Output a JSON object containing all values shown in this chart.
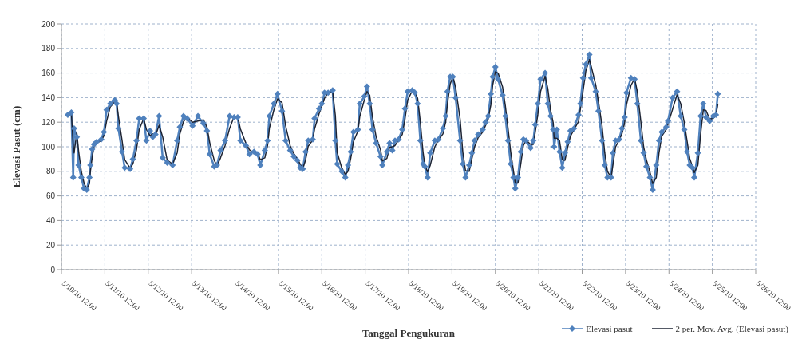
{
  "chart_data": {
    "type": "line",
    "xlabel": "Tanggal Pengukuran",
    "ylabel": "Elevasi Pasut (cm)",
    "grid": true,
    "legend": "bottom right",
    "line_style": "solid",
    "xlim": [
      "--05-10T12:00",
      "--05-26T12:00"
    ],
    "ylim": [
      0,
      200
    ],
    "yticks": [
      0,
      20,
      40,
      60,
      80,
      100,
      120,
      140,
      160,
      180,
      200
    ],
    "xticks": [
      {
        "value": "--05-10T12:00",
        "label": "5/10/10 12:00"
      },
      {
        "value": "--05-11T12:00",
        "label": "5/11/10 12:00"
      },
      {
        "value": "--05-12T12:00",
        "label": "5/12/10 12:00"
      },
      {
        "value": "--05-13T12:00",
        "label": "5/13/10 12:00"
      },
      {
        "value": "--05-14T12:00",
        "label": "5/14/10 12:00"
      },
      {
        "value": "--05-15T12:00",
        "label": "5/15/10 12:00"
      },
      {
        "value": "--05-16T12:00",
        "label": "5/16/10 12:00"
      },
      {
        "value": "--05-17T12:00",
        "label": "5/17/10 12:00"
      },
      {
        "value": "--05-18T12:00",
        "label": "5/18/10 12:00"
      },
      {
        "value": "--05-19T12:00",
        "label": "5/19/10 12:00"
      },
      {
        "value": "--05-20T12:00",
        "label": "5/20/10 12:00"
      },
      {
        "value": "--05-21T12:00",
        "label": "5/21/10 12:00"
      },
      {
        "value": "--05-22T12:00",
        "label": "5/22/10 12:00"
      },
      {
        "value": "--05-23T12:00",
        "label": "5/23/10 12:00"
      },
      {
        "value": "--05-24T12:00",
        "label": "5/24/10 12:00"
      },
      {
        "value": "--05-25T12:00",
        "label": "5/25/10 12:00"
      },
      {
        "value": "--05-26T12:00",
        "label": "5/26/10 12:00"
      }
    ],
    "x": [
      "--05-10T15:30",
      "--05-10T17:30",
      "--05-10T18:30",
      "--05-10T19:00",
      "--05-10T20:30",
      "--05-10T21:30",
      "--05-10T23:00",
      "--05-11T00:30",
      "--05-11T02:00",
      "--05-11T03:30",
      "--05-11T04:00",
      "--05-11T05:00",
      "--05-11T06:00",
      "--05-11T07:30",
      "--05-11T10:00",
      "--05-11T11:30",
      "--05-11T13:00",
      "--05-11T15:00",
      "--05-11T17:30",
      "--05-11T18:30",
      "--05-11T19:30",
      "--05-11T21:30",
      "--05-11T23:00",
      "--05-12T02:00",
      "--05-12T03:30",
      "--05-12T05:30",
      "--05-12T07:00",
      "--05-12T09:30",
      "--05-12T11:00",
      "--05-12T13:00",
      "--05-12T14:30",
      "--05-12T16:00",
      "--05-12T18:00",
      "--05-12T20:00",
      "--05-12T22:30",
      "--05-13T01:30",
      "--05-13T04:00",
      "--05-13T05:30",
      "--05-13T07:30",
      "--05-13T09:30",
      "--05-13T12:30",
      "--05-13T15:30",
      "--05-13T18:30",
      "--05-13T20:30",
      "--05-13T22:00",
      "--05-14T00:30",
      "--05-14T02:00",
      "--05-14T04:00",
      "--05-14T06:30",
      "--05-14T09:00",
      "--05-14T11:30",
      "--05-14T13:30",
      "--05-14T15:00",
      "--05-14T18:00",
      "--05-14T20:00",
      "--05-14T22:30",
      "--05-15T00:30",
      "--05-15T02:00",
      "--05-15T04:30",
      "--05-15T06:00",
      "--05-15T07:00",
      "--05-15T09:30",
      "--05-15T11:30",
      "--05-15T14:00",
      "--05-15T16:00",
      "--05-15T18:30",
      "--05-15T20:30",
      "--05-15T22:30",
      "--05-16T00:00",
      "--05-16T01:30",
      "--05-16T03:00",
      "--05-16T04:30",
      "--05-16T07:00",
      "--05-16T08:00",
      "--05-16T10:30",
      "--05-16T12:00",
      "--05-16T13:30",
      "--05-16T15:30",
      "--05-16T18:00",
      "--05-16T19:30",
      "--05-16T20:30",
      "--05-16T23:00",
      "--05-17T01:00",
      "--05-17T02:30",
      "--05-17T04:00",
      "--05-17T05:30",
      "--05-17T08:00",
      "--05-17T09:00",
      "--05-17T11:30",
      "--05-17T13:00",
      "--05-17T14:30",
      "--05-17T16:00",
      "--05-17T18:00",
      "--05-17T20:30",
      "--05-17T21:30",
      "--05-18T00:00",
      "--05-18T01:30",
      "--05-18T03:00",
      "--05-18T04:30",
      "--05-18T06:30",
      "--05-18T08:30",
      "--05-18T10:00",
      "--05-18T11:30",
      "--05-18T14:00",
      "--05-18T15:30",
      "--05-18T17:00",
      "--05-18T18:30",
      "--05-18T20:00",
      "--05-18T21:00",
      "--05-18T22:30",
      "--05-19T00:00",
      "--05-19T02:30",
      "--05-19T04:30",
      "--05-19T07:00",
      "--05-19T08:30",
      "--05-19T09:30",
      "--05-19T11:00",
      "--05-19T12:30",
      "--05-19T14:00",
      "--05-19T16:30",
      "--05-19T18:00",
      "--05-19T19:30",
      "--05-19T21:30",
      "--05-19T23:00",
      "--05-20T00:30",
      "--05-20T02:30",
      "--05-20T05:00",
      "--05-20T06:30",
      "--05-20T08:00",
      "--05-20T09:30",
      "--05-20T10:30",
      "--05-20T12:00",
      "--05-20T13:30",
      "--05-20T16:00",
      "--05-20T17:30",
      "--05-20T19:00",
      "--05-20T20:30",
      "--05-20T22:00",
      "--05-20T23:00",
      "--05-21T00:30",
      "--05-21T02:00",
      "--05-21T03:30",
      "--05-21T05:00",
      "--05-21T07:30",
      "--05-21T09:00",
      "--05-21T10:00",
      "--05-21T11:30",
      "--05-21T13:00",
      "--05-21T15:30",
      "--05-21T17:00",
      "--05-21T18:30",
      "--05-21T20:00",
      "--05-21T20:30",
      "--05-21T22:00",
      "--05-21T23:30",
      "--05-22T01:00",
      "--05-22T02:30",
      "--05-22T04:00",
      "--05-22T05:30",
      "--05-22T07:30",
      "--05-22T10:00",
      "--05-22T11:00",
      "--05-22T12:30",
      "--05-22T14:00",
      "--05-22T16:00",
      "--05-22T17:00",
      "--05-22T19:30",
      "--05-22T21:00",
      "--05-22T23:00",
      "--05-23T00:30",
      "--05-23T02:00",
      "--05-23T04:00",
      "--05-23T05:00",
      "--05-23T06:30",
      "--05-23T08:30",
      "--05-23T10:00",
      "--05-23T11:30",
      "--05-23T12:30",
      "--05-23T15:00",
      "--05-23T17:00",
      "--05-23T18:30",
      "--05-23T20:30",
      "--05-23T22:00",
      "--05-23T23:30",
      "--05-24T01:30",
      "--05-24T03:00",
      "--05-24T05:00",
      "--05-24T06:30",
      "--05-24T08:00",
      "--05-24T10:30",
      "--05-24T11:30",
      "--05-24T14:00",
      "--05-24T16:30",
      "--05-24T18:30",
      "--05-24T20:30",
      "--05-24T22:00",
      "--05-24T23:30",
      "--05-25T01:00",
      "--05-25T02:00",
      "--05-25T04:00",
      "--05-25T05:30",
      "--05-25T07:00",
      "--05-25T08:30",
      "--05-25T10:30",
      "--05-25T12:30",
      "--05-25T14:00",
      "--05-25T15:00"
    ],
    "series": [
      {
        "name": "Elevasi pasut",
        "color": "#4f81bd",
        "marker": "diamond",
        "values": [
          126,
          128,
          75,
          115,
          108,
          85,
          75,
          66,
          65,
          75,
          85,
          98,
          102,
          104,
          106,
          112,
          130,
          135,
          138,
          135,
          115,
          96,
          83,
          82,
          90,
          105,
          123,
          123,
          105,
          113,
          108,
          110,
          125,
          91,
          87,
          85,
          105,
          116,
          125,
          123,
          117,
          125,
          119,
          113,
          94,
          84,
          85,
          97,
          105,
          125,
          124,
          124,
          105,
          101,
          94,
          96,
          94,
          85,
          97,
          105,
          125,
          135,
          143,
          129,
          105,
          97,
          92,
          89,
          83,
          82,
          96,
          105,
          106,
          123,
          131,
          135,
          144,
          144,
          146,
          105,
          86,
          80,
          75,
          85,
          96,
          112,
          114,
          135,
          141,
          149,
          135,
          114,
          103,
          92,
          85,
          96,
          103,
          97,
          105,
          106,
          114,
          131,
          145,
          146,
          144,
          135,
          105,
          86,
          84,
          75,
          95,
          105,
          106,
          115,
          125,
          145,
          157,
          157,
          140,
          105,
          86,
          75,
          85,
          95,
          105,
          110,
          114,
          120,
          125,
          143,
          157,
          165,
          155,
          142,
          125,
          105,
          86,
          75,
          66,
          75,
          96,
          106,
          105,
          99,
          105,
          118,
          135,
          155,
          160,
          135,
          125,
          114,
          100,
          114,
          96,
          83,
          95,
          104,
          113,
          115,
          126,
          135,
          156,
          167,
          175,
          156,
          145,
          129,
          105,
          85,
          75,
          75,
          95,
          105,
          106,
          115,
          124,
          144,
          156,
          155,
          135,
          105,
          95,
          84,
          75,
          65,
          85,
          105,
          112,
          116,
          121,
          140,
          145,
          125,
          114,
          96,
          85,
          83,
          75,
          95,
          125,
          135,
          124,
          121,
          125,
          126,
          143
        ]
      },
      {
        "name": "2 per. Mov. Avg. (Elevasi pasut)",
        "color": "#1c2333",
        "marker": "none",
        "values": [
          null,
          127,
          101.5,
          95,
          111.5,
          96.5,
          80,
          70.5,
          65.5,
          70,
          80,
          91.5,
          100,
          103,
          105,
          109,
          121,
          132.5,
          136.5,
          136.5,
          125,
          105.5,
          89.5,
          82.5,
          86,
          97.5,
          114,
          123,
          114,
          109,
          110.5,
          109,
          117.5,
          108,
          89,
          86,
          95,
          110.5,
          120.5,
          124,
          120,
          121,
          122,
          116,
          103.5,
          89,
          84.5,
          91,
          101,
          115,
          124.5,
          124,
          114.5,
          103,
          97.5,
          95,
          95,
          89.5,
          91,
          101,
          115,
          130,
          139,
          136,
          117,
          101,
          94.5,
          90.5,
          86,
          82.5,
          89,
          100.5,
          105.5,
          114.5,
          127,
          133,
          139.5,
          144,
          145,
          125.5,
          95.5,
          83,
          77.5,
          80,
          90.5,
          104,
          113,
          124.5,
          138,
          145,
          142,
          124.5,
          108.5,
          97.5,
          88.5,
          90.5,
          99.5,
          100,
          101,
          105.5,
          110,
          122.5,
          138,
          145.5,
          145,
          139.5,
          120,
          95.5,
          85,
          79.5,
          85,
          100,
          105.5,
          110.5,
          120,
          135,
          151,
          157,
          148.5,
          122.5,
          95.5,
          80.5,
          80,
          90,
          100,
          107.5,
          112,
          117,
          122.5,
          134,
          150,
          161,
          160,
          148.5,
          133.5,
          115,
          95.5,
          80.5,
          70.5,
          70.5,
          85.5,
          101,
          105.5,
          102,
          102,
          111.5,
          126.5,
          145,
          157.5,
          147.5,
          130,
          119.5,
          107,
          107,
          105,
          89.5,
          89,
          99.5,
          108.5,
          114,
          120.5,
          130.5,
          145.5,
          161.5,
          171,
          165.5,
          150.5,
          137,
          117,
          95,
          80,
          75,
          85,
          100,
          105.5,
          110.5,
          119.5,
          134,
          150,
          155.5,
          145,
          120,
          100,
          89.5,
          79.5,
          70,
          75,
          95,
          108.5,
          114,
          118.5,
          130.5,
          142.5,
          135,
          119.5,
          105,
          90.5,
          84,
          79,
          85,
          110,
          130,
          129.5,
          122.5,
          123,
          125.5,
          134.5
        ]
      }
    ]
  }
}
